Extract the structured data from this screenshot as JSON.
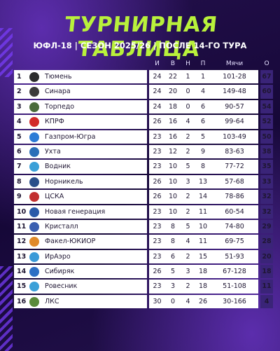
{
  "title": "Турнирная таблица",
  "subtitle": "ЮФЛ-18 | СЕЗОН 2025/26 | ПОСЛЕ 14-ГО ТУРА",
  "headers": {
    "i": "И",
    "v": "В",
    "n": "Н",
    "p": "П",
    "goals": "Мячи",
    "pts": "О"
  },
  "rows": [
    {
      "pos": "1",
      "team": "Тюмень",
      "i": "24",
      "v": "22",
      "n": "1",
      "p": "1",
      "goals": "101-28",
      "pts": "67",
      "logo_color": "#2c2c2c"
    },
    {
      "pos": "2",
      "team": "Синара",
      "i": "24",
      "v": "20",
      "n": "0",
      "p": "4",
      "goals": "149-48",
      "pts": "60",
      "logo_color": "#3a3a3a"
    },
    {
      "pos": "3",
      "team": "Торпедо",
      "i": "24",
      "v": "18",
      "n": "0",
      "p": "6",
      "goals": "90-57",
      "pts": "54",
      "logo_color": "#4a6b3a"
    },
    {
      "pos": "4",
      "team": "КПРФ",
      "i": "26",
      "v": "16",
      "n": "4",
      "p": "6",
      "goals": "99-64",
      "pts": "52",
      "logo_color": "#d22a2a"
    },
    {
      "pos": "5",
      "team": "Газпром-Югра",
      "i": "23",
      "v": "16",
      "n": "2",
      "p": "5",
      "goals": "103-49",
      "pts": "50",
      "logo_color": "#2c7bd6"
    },
    {
      "pos": "6",
      "team": "Ухта",
      "i": "23",
      "v": "12",
      "n": "2",
      "p": "9",
      "goals": "83-63",
      "pts": "38",
      "logo_color": "#2b6fb8"
    },
    {
      "pos": "7",
      "team": "Водник",
      "i": "23",
      "v": "10",
      "n": "5",
      "p": "8",
      "goals": "77-72",
      "pts": "35",
      "logo_color": "#3aa0d8"
    },
    {
      "pos": "8",
      "team": "Норникель",
      "i": "26",
      "v": "10",
      "n": "3",
      "p": "13",
      "goals": "57-68",
      "pts": "33",
      "logo_color": "#2a4f8a"
    },
    {
      "pos": "9",
      "team": "ЦСКА",
      "i": "26",
      "v": "10",
      "n": "2",
      "p": "14",
      "goals": "78-86",
      "pts": "32",
      "logo_color": "#c23030"
    },
    {
      "pos": "10",
      "team": "Новая генерация",
      "i": "23",
      "v": "10",
      "n": "2",
      "p": "11",
      "goals": "60-54",
      "pts": "32",
      "logo_color": "#2a5aa8"
    },
    {
      "pos": "11",
      "team": "Кристалл",
      "i": "23",
      "v": "8",
      "n": "5",
      "p": "10",
      "goals": "74-80",
      "pts": "29",
      "logo_color": "#3b5fb0"
    },
    {
      "pos": "12",
      "team": "Факел-ЮКИОР",
      "i": "23",
      "v": "8",
      "n": "4",
      "p": "11",
      "goals": "69-75",
      "pts": "28",
      "logo_color": "#e08a2a"
    },
    {
      "pos": "13",
      "team": "ИрАэро",
      "i": "23",
      "v": "6",
      "n": "2",
      "p": "15",
      "goals": "51-93",
      "pts": "20",
      "logo_color": "#3a9ad8"
    },
    {
      "pos": "14",
      "team": "Сибиряк",
      "i": "26",
      "v": "5",
      "n": "3",
      "p": "18",
      "goals": "67-128",
      "pts": "18",
      "logo_color": "#2d6fc4"
    },
    {
      "pos": "15",
      "team": "Ровесник",
      "i": "23",
      "v": "3",
      "n": "2",
      "p": "18",
      "goals": "51-108",
      "pts": "11",
      "logo_color": "#3aa0d8"
    },
    {
      "pos": "16",
      "team": "ЛКС",
      "i": "30",
      "v": "0",
      "n": "4",
      "p": "26",
      "goals": "30-166",
      "pts": "4",
      "logo_color": "#5a8a3a"
    }
  ]
}
